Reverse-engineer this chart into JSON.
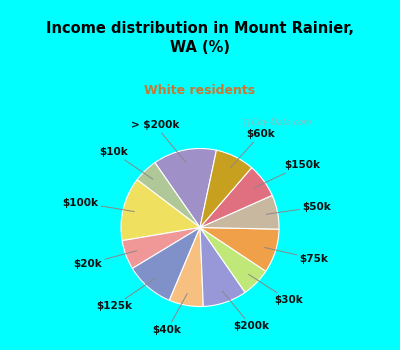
{
  "title": "Income distribution in Mount Rainier,\nWA (%)",
  "subtitle": "White residents",
  "title_color": "#000000",
  "subtitle_color": "#c87832",
  "background_cyan": "#00ffff",
  "background_panel": "#dff0e8",
  "watermark": "ⓘ City-Data.com",
  "labels": [
    "> $200k",
    "$10k",
    "$100k",
    "$20k",
    "$125k",
    "$40k",
    "$200k",
    "$30k",
    "$75k",
    "$50k",
    "$150k",
    "$60k"
  ],
  "values": [
    13,
    5,
    13,
    6,
    10,
    7,
    9,
    6,
    9,
    7,
    7,
    8
  ],
  "colors": [
    "#a090c8",
    "#b0c898",
    "#f0e060",
    "#f09898",
    "#8090c8",
    "#f8c080",
    "#9898d8",
    "#c0e878",
    "#f0a048",
    "#c8b8a0",
    "#e07080",
    "#c8a020"
  ],
  "label_fontsize": 7.5,
  "startangle": 78
}
